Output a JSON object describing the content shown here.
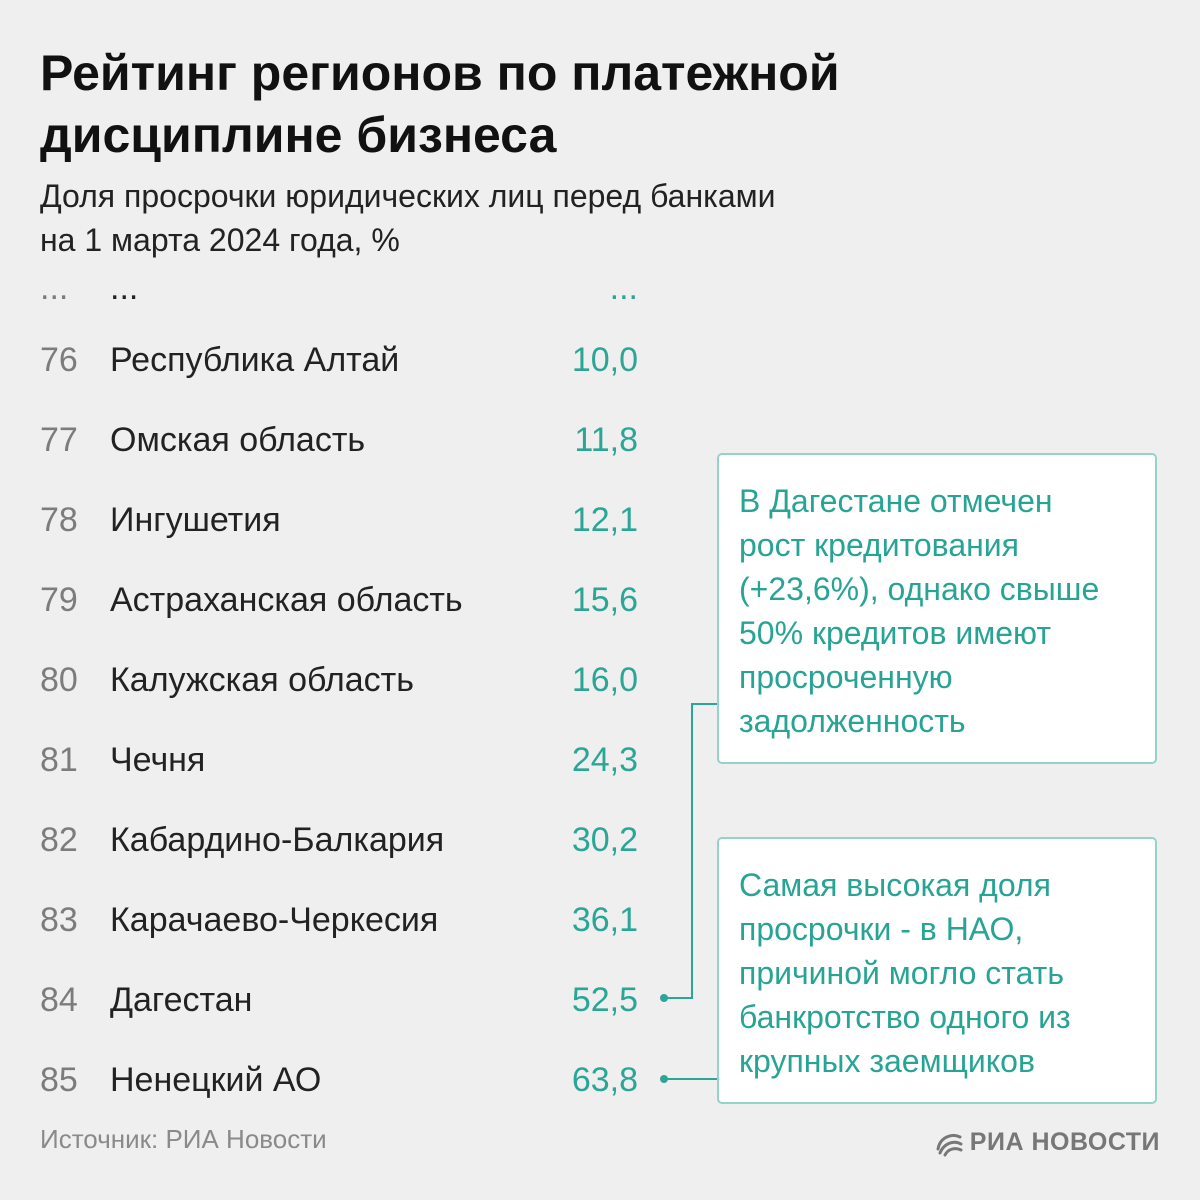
{
  "chart_data": {
    "type": "table",
    "title": "Рейтинг регионов по платежной дисциплине бизнеса",
    "subtitle_line1": "Доля просрочки юридических лиц перед банками",
    "subtitle_line2": "на 1 марта 2024 года, %",
    "ellipsis": {
      "rank": "...",
      "name": "...",
      "value": "..."
    },
    "rows": [
      {
        "rank": "76",
        "region": "Республика Алтай",
        "value": "10,0"
      },
      {
        "rank": "77",
        "region": "Омская область",
        "value": "11,8"
      },
      {
        "rank": "78",
        "region": "Ингушетия",
        "value": "12,1"
      },
      {
        "rank": "79",
        "region": "Астраханская область",
        "value": "15,6"
      },
      {
        "rank": "80",
        "region": "Калужская область",
        "value": "16,0"
      },
      {
        "rank": "81",
        "region": "Чечня",
        "value": "24,3"
      },
      {
        "rank": "82",
        "region": "Кабардино-Балкария",
        "value": "30,2"
      },
      {
        "rank": "83",
        "region": "Карачаево-Черкесия",
        "value": "36,1"
      },
      {
        "rank": "84",
        "region": "Дагестан",
        "value": "52,5"
      },
      {
        "rank": "85",
        "region": "Ненецкий АО",
        "value": "63,8"
      }
    ],
    "annotations": [
      {
        "target_rank": "84",
        "lines": [
          "В Дагестане отмечен",
          "рост кредитования",
          "(+23,6%), однако свыше",
          "50% кредитов имеют",
          "просроченную",
          "задолженность"
        ]
      },
      {
        "target_rank": "85",
        "lines": [
          "Самая высокая доля",
          "просрочки - в НАО,",
          "причиной могло стать",
          "банкротство одного из",
          "крупных заемщиков"
        ]
      }
    ]
  },
  "source": "Источник: РИА Новости",
  "logo": {
    "icon": "ria-swirl-icon",
    "text": "РИА НОВОСТИ"
  },
  "colors": {
    "accent": "#2aa696",
    "callout_border": "#93d3ca",
    "rank": "#7c7c7c"
  }
}
